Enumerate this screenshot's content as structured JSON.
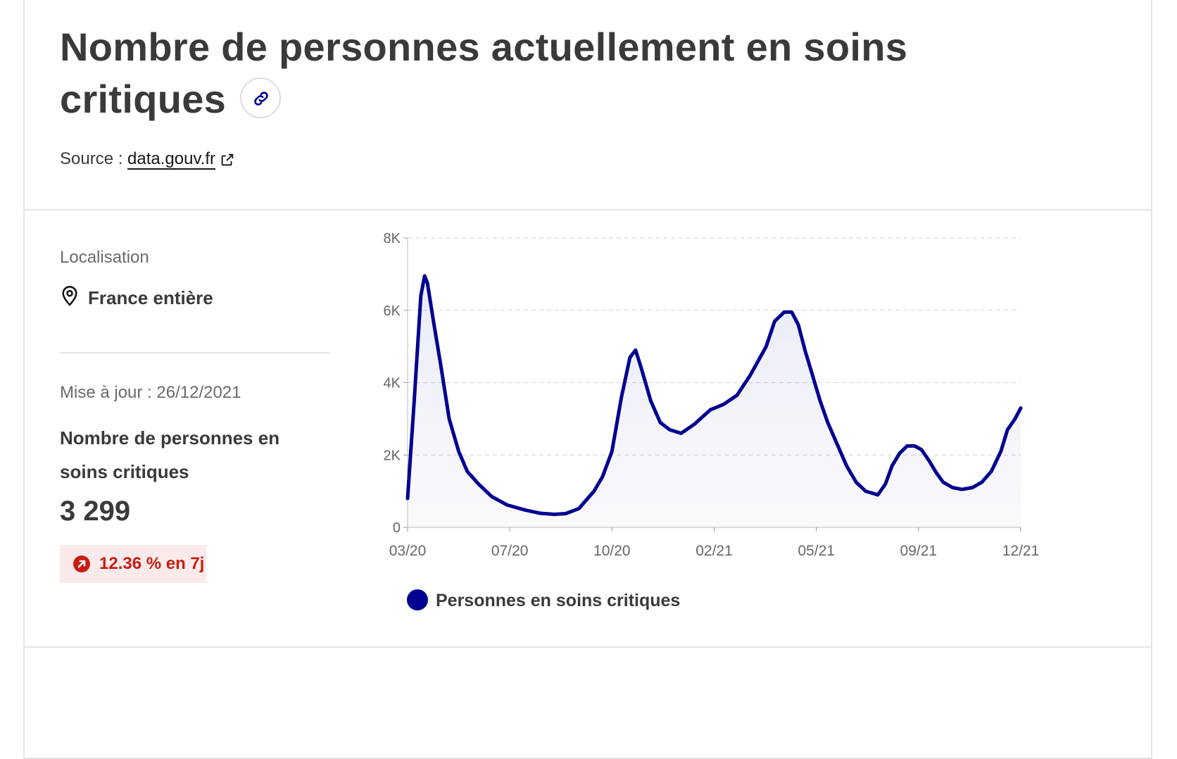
{
  "header": {
    "title": "Nombre de personnes actuellement en soins critiques",
    "source_prefix": "Source : ",
    "source_link": "data.gouv.fr"
  },
  "sidebar": {
    "location_label": "Localisation",
    "location_value": "France entière",
    "update_text": "Mise à jour : 26/12/2021",
    "metric_label": "Nombre de personnes en soins critiques",
    "metric_value": "3 299",
    "trend_text": "12.36 % en 7j"
  },
  "colors": {
    "line": "#000091",
    "trend_up": "#c81d14",
    "trend_bg": "#fbeaea"
  },
  "icons": {
    "link": "link-icon",
    "external": "external-link-icon",
    "location": "map-pin-icon",
    "trend": "arrow-up-right-icon"
  },
  "chart_data": {
    "type": "area",
    "x_tick_labels": [
      "03/20",
      "07/20",
      "10/20",
      "02/21",
      "05/21",
      "09/21",
      "12/21"
    ],
    "y_tick_labels": [
      "0",
      "2K",
      "4K",
      "6K",
      "8K"
    ],
    "ylim": [
      0,
      8000
    ],
    "xlim": [
      "2020-03-18",
      "2021-12-26"
    ],
    "grid": true,
    "legend_position": "bottom",
    "series": [
      {
        "name": "Personnes en soins critiques",
        "color": "#000091",
        "points": [
          [
            "2020-03-18",
            800
          ],
          [
            "2020-03-25",
            3500
          ],
          [
            "2020-04-01",
            6400
          ],
          [
            "2020-04-05",
            6950
          ],
          [
            "2020-04-08",
            6750
          ],
          [
            "2020-04-15",
            5600
          ],
          [
            "2020-04-22",
            4500
          ],
          [
            "2020-05-01",
            3000
          ],
          [
            "2020-05-11",
            2100
          ],
          [
            "2020-05-20",
            1550
          ],
          [
            "2020-06-01",
            1200
          ],
          [
            "2020-06-15",
            850
          ],
          [
            "2020-07-01",
            620
          ],
          [
            "2020-07-20",
            480
          ],
          [
            "2020-08-05",
            390
          ],
          [
            "2020-08-20",
            360
          ],
          [
            "2020-09-01",
            380
          ],
          [
            "2020-09-15",
            520
          ],
          [
            "2020-10-01",
            1000
          ],
          [
            "2020-10-10",
            1400
          ],
          [
            "2020-10-20",
            2100
          ],
          [
            "2020-10-30",
            3600
          ],
          [
            "2020-11-08",
            4700
          ],
          [
            "2020-11-14",
            4900
          ],
          [
            "2020-11-20",
            4400
          ],
          [
            "2020-11-30",
            3500
          ],
          [
            "2020-12-10",
            2900
          ],
          [
            "2020-12-20",
            2700
          ],
          [
            "2021-01-01",
            2600
          ],
          [
            "2021-01-15",
            2850
          ],
          [
            "2021-02-01",
            3250
          ],
          [
            "2021-02-15",
            3400
          ],
          [
            "2021-03-01",
            3650
          ],
          [
            "2021-03-15",
            4200
          ],
          [
            "2021-04-01",
            5000
          ],
          [
            "2021-04-10",
            5700
          ],
          [
            "2021-04-20",
            5950
          ],
          [
            "2021-04-28",
            5950
          ],
          [
            "2021-05-05",
            5600
          ],
          [
            "2021-05-12",
            4900
          ],
          [
            "2021-05-20",
            4200
          ],
          [
            "2021-05-28",
            3500
          ],
          [
            "2021-06-05",
            2900
          ],
          [
            "2021-06-15",
            2300
          ],
          [
            "2021-06-25",
            1700
          ],
          [
            "2021-07-05",
            1250
          ],
          [
            "2021-07-15",
            1000
          ],
          [
            "2021-07-28",
            900
          ],
          [
            "2021-08-05",
            1200
          ],
          [
            "2021-08-12",
            1700
          ],
          [
            "2021-08-20",
            2050
          ],
          [
            "2021-08-28",
            2250
          ],
          [
            "2021-09-05",
            2250
          ],
          [
            "2021-09-12",
            2150
          ],
          [
            "2021-09-20",
            1850
          ],
          [
            "2021-09-28",
            1500
          ],
          [
            "2021-10-05",
            1250
          ],
          [
            "2021-10-15",
            1100
          ],
          [
            "2021-10-25",
            1050
          ],
          [
            "2021-11-05",
            1100
          ],
          [
            "2021-11-15",
            1250
          ],
          [
            "2021-11-25",
            1550
          ],
          [
            "2021-12-05",
            2100
          ],
          [
            "2021-12-12",
            2700
          ],
          [
            "2021-12-20",
            3000
          ],
          [
            "2021-12-26",
            3299
          ]
        ]
      }
    ]
  }
}
